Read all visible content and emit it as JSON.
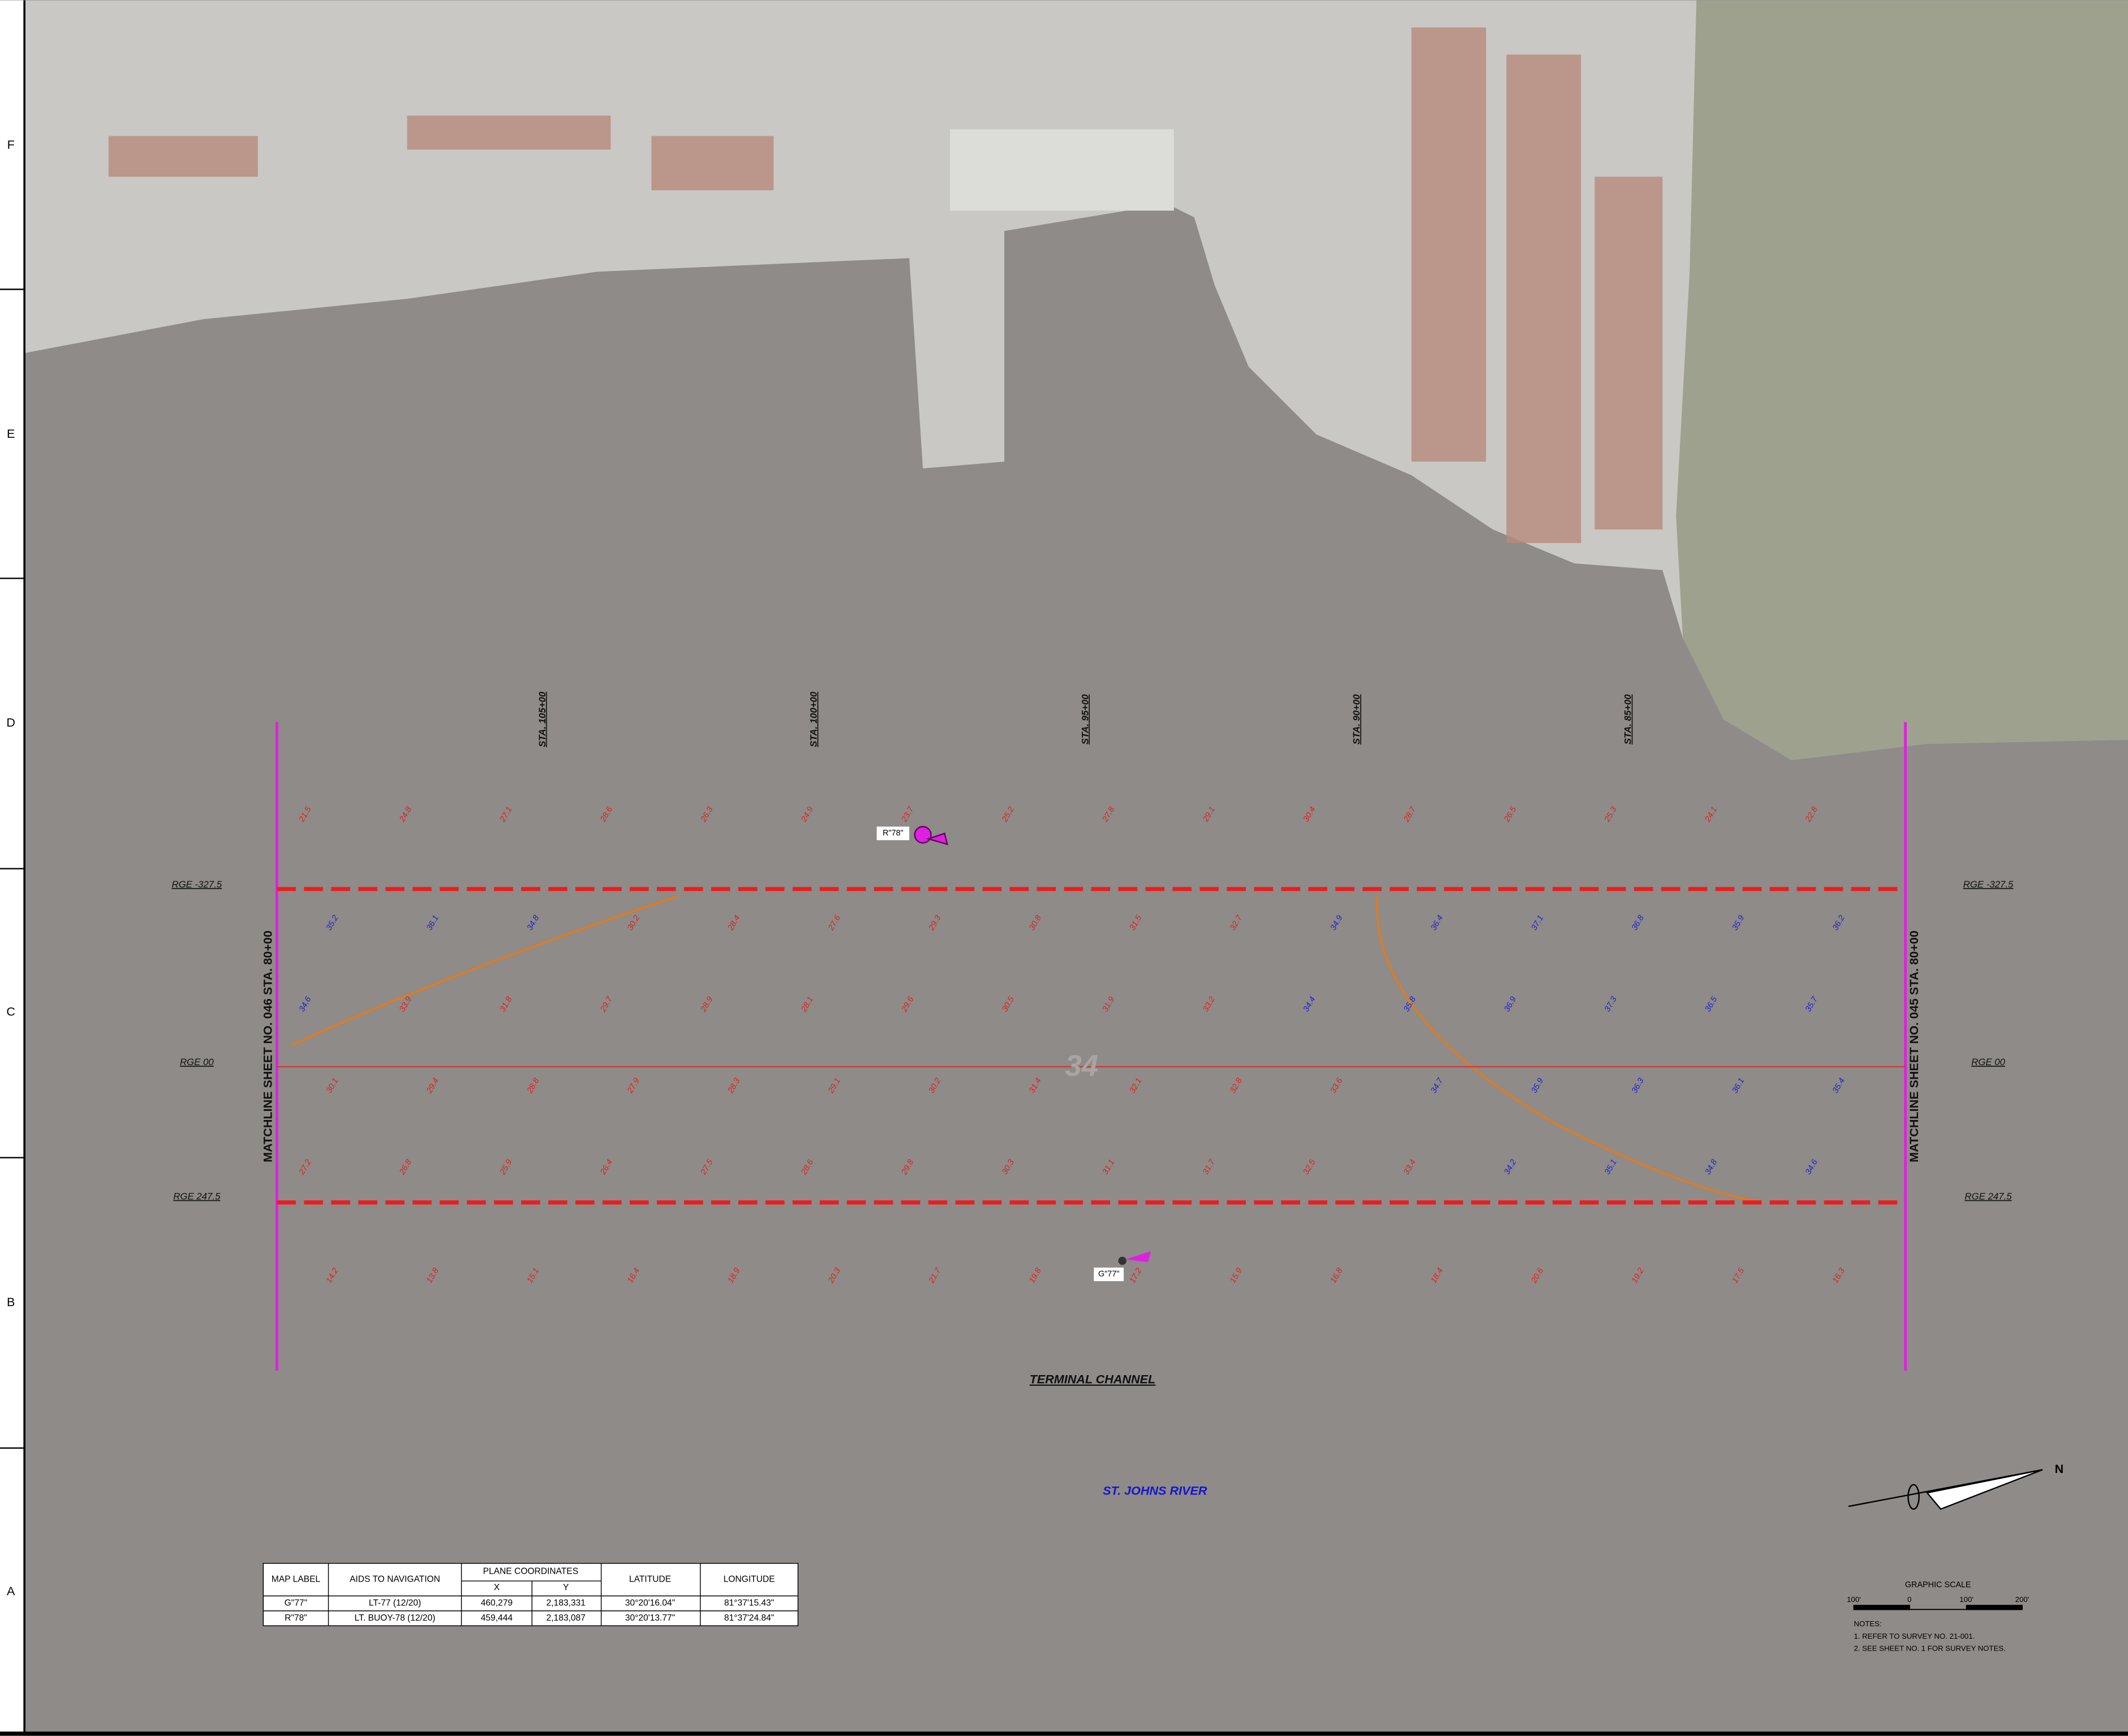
{
  "grid_rows": [
    "F",
    "E",
    "D",
    "C",
    "B",
    "A"
  ],
  "stations": [
    "STA. 105+00",
    "STA. 100+00",
    "STA. 95+00",
    "STA. 90+00",
    "STA. 85+00"
  ],
  "ranges_left": [
    "RGE -327.5",
    "RGE 00",
    "RGE 247.5"
  ],
  "ranges_right": [
    "RGE -327.5",
    "RGE 00",
    "RGE 247.5"
  ],
  "matchline_left": "MATCHLINE SHEET NO. 046 STA. 80+00",
  "matchline_right": "MATCHLINE SHEET NO. 045 STA. 80+00",
  "contour_label": 34,
  "aids": [
    {
      "label": "R\"78\""
    },
    {
      "label": "G\"77\""
    }
  ],
  "channel_name": "TERMINAL CHANNEL",
  "river_name": "ST. JOHNS RIVER",
  "north": "N",
  "soundings": {
    "rows": [
      [
        21.5,
        24.8,
        27.1,
        28.6,
        26.3,
        24.9,
        23.7,
        25.2,
        27.8,
        29.1,
        30.4,
        28.7,
        26.5,
        25.3,
        24.1,
        22.8
      ],
      [
        35.2,
        36.1,
        34.8,
        30.2,
        28.4,
        27.6,
        29.3,
        30.8,
        31.5,
        32.7,
        34.9,
        36.4,
        37.1,
        36.8,
        35.9,
        36.2
      ],
      [
        34.6,
        33.9,
        31.8,
        29.7,
        28.9,
        28.1,
        29.6,
        30.5,
        31.9,
        33.2,
        34.4,
        35.8,
        36.9,
        37.3,
        36.5,
        35.7
      ],
      [
        30.1,
        29.4,
        28.8,
        27.9,
        28.3,
        29.1,
        30.2,
        31.4,
        32.1,
        32.8,
        33.6,
        34.7,
        35.9,
        36.3,
        36.1,
        35.4
      ],
      [
        27.2,
        26.8,
        25.9,
        26.4,
        27.5,
        28.6,
        29.8,
        30.3,
        31.1,
        31.7,
        32.5,
        33.4,
        34.2,
        35.1,
        34.8,
        34.6
      ],
      [
        14.2,
        13.8,
        15.1,
        16.4,
        18.9,
        20.3,
        21.7,
        19.8,
        17.2,
        15.9,
        16.8,
        18.4,
        20.6,
        19.2,
        17.5,
        16.3
      ]
    ]
  },
  "table": {
    "header": [
      "MAP LABEL",
      "AIDS TO NAVIGATION",
      "PLANE COORDINATES",
      "LATITUDE",
      "LONGITUDE"
    ],
    "subheader": [
      "X",
      "Y"
    ],
    "rows": [
      [
        "G\"77\"",
        "LT-77 (12/20)",
        "460,279",
        "2,183,331",
        "30°20'16.04\"",
        "81°37'15.43\""
      ],
      [
        "R\"78\"",
        "LT. BUOY-78 (12/20)",
        "459,444",
        "2,183,087",
        "30°20'13.77\"",
        "81°37'24.84\""
      ]
    ]
  },
  "scale": {
    "title": "GRAPHIC SCALE",
    "labels": [
      "100'",
      "0",
      "100'",
      "200'"
    ]
  },
  "notes": [
    "NOTES:",
    "1. REFER TO SURVEY NO. 21-001.",
    "2. SEE SHEET NO. 1 FOR SURVEY NOTES."
  ]
}
